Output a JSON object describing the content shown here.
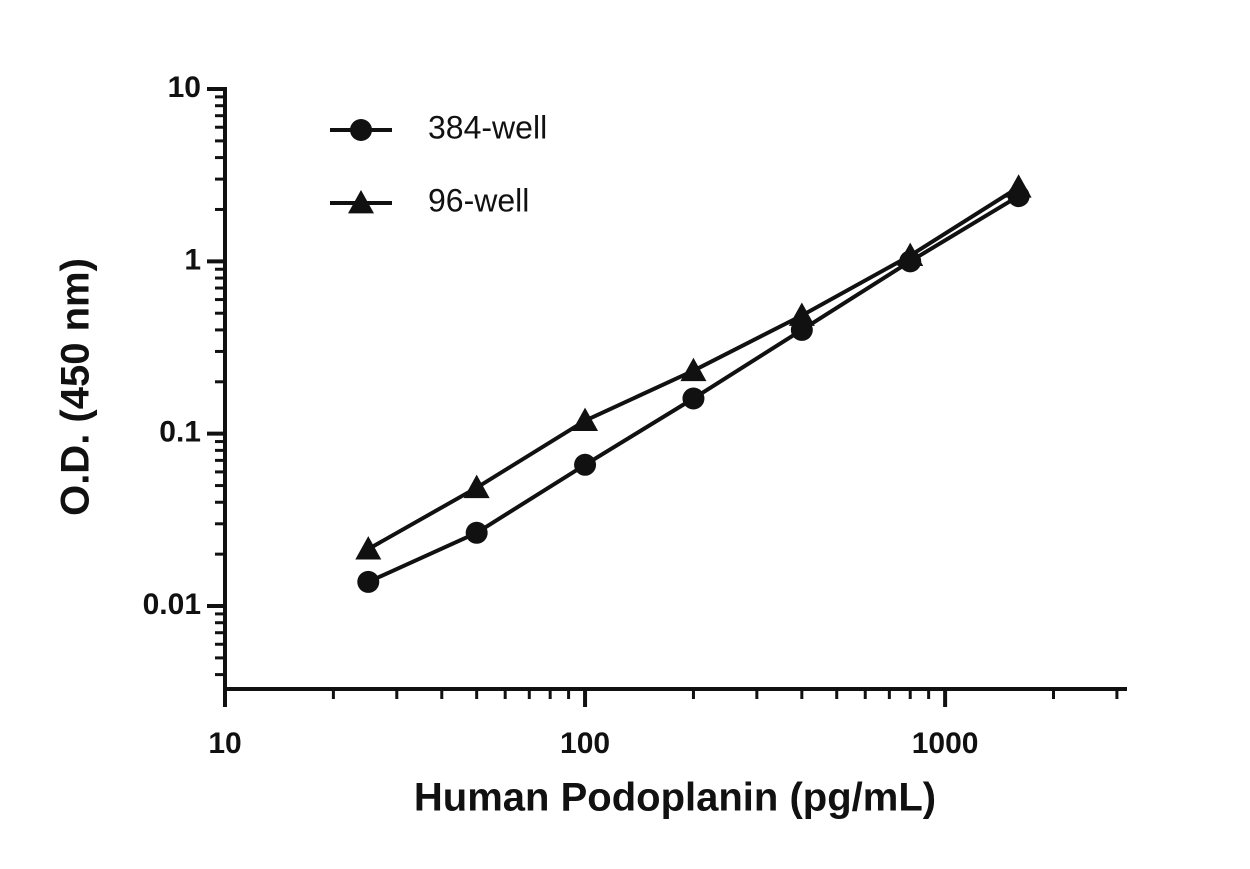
{
  "chart_data": {
    "type": "line",
    "xlabel": "Human Podoplanin (pg/mL)",
    "ylabel": "O.D. (450 nm)",
    "xscale": "log",
    "yscale": "log",
    "xlim": [
      10,
      3200
    ],
    "ylim": [
      0.0033,
      10
    ],
    "xticks": [
      10,
      100,
      1000
    ],
    "yticks": [
      0.01,
      0.1,
      1,
      10
    ],
    "x": [
      25,
      50,
      100,
      200,
      400,
      800,
      1600
    ],
    "legend": "upper left",
    "series": [
      {
        "name": "384-well",
        "color": "#111111",
        "marker": "circle",
        "values": [
          0.0138,
          0.0266,
          0.066,
          0.16,
          0.4,
          1.0,
          2.39
        ]
      },
      {
        "name": "96-well",
        "color": "#111111",
        "marker": "triangle",
        "values": [
          0.0214,
          0.0486,
          0.119,
          0.232,
          0.485,
          1.08,
          2.69
        ]
      }
    ]
  }
}
